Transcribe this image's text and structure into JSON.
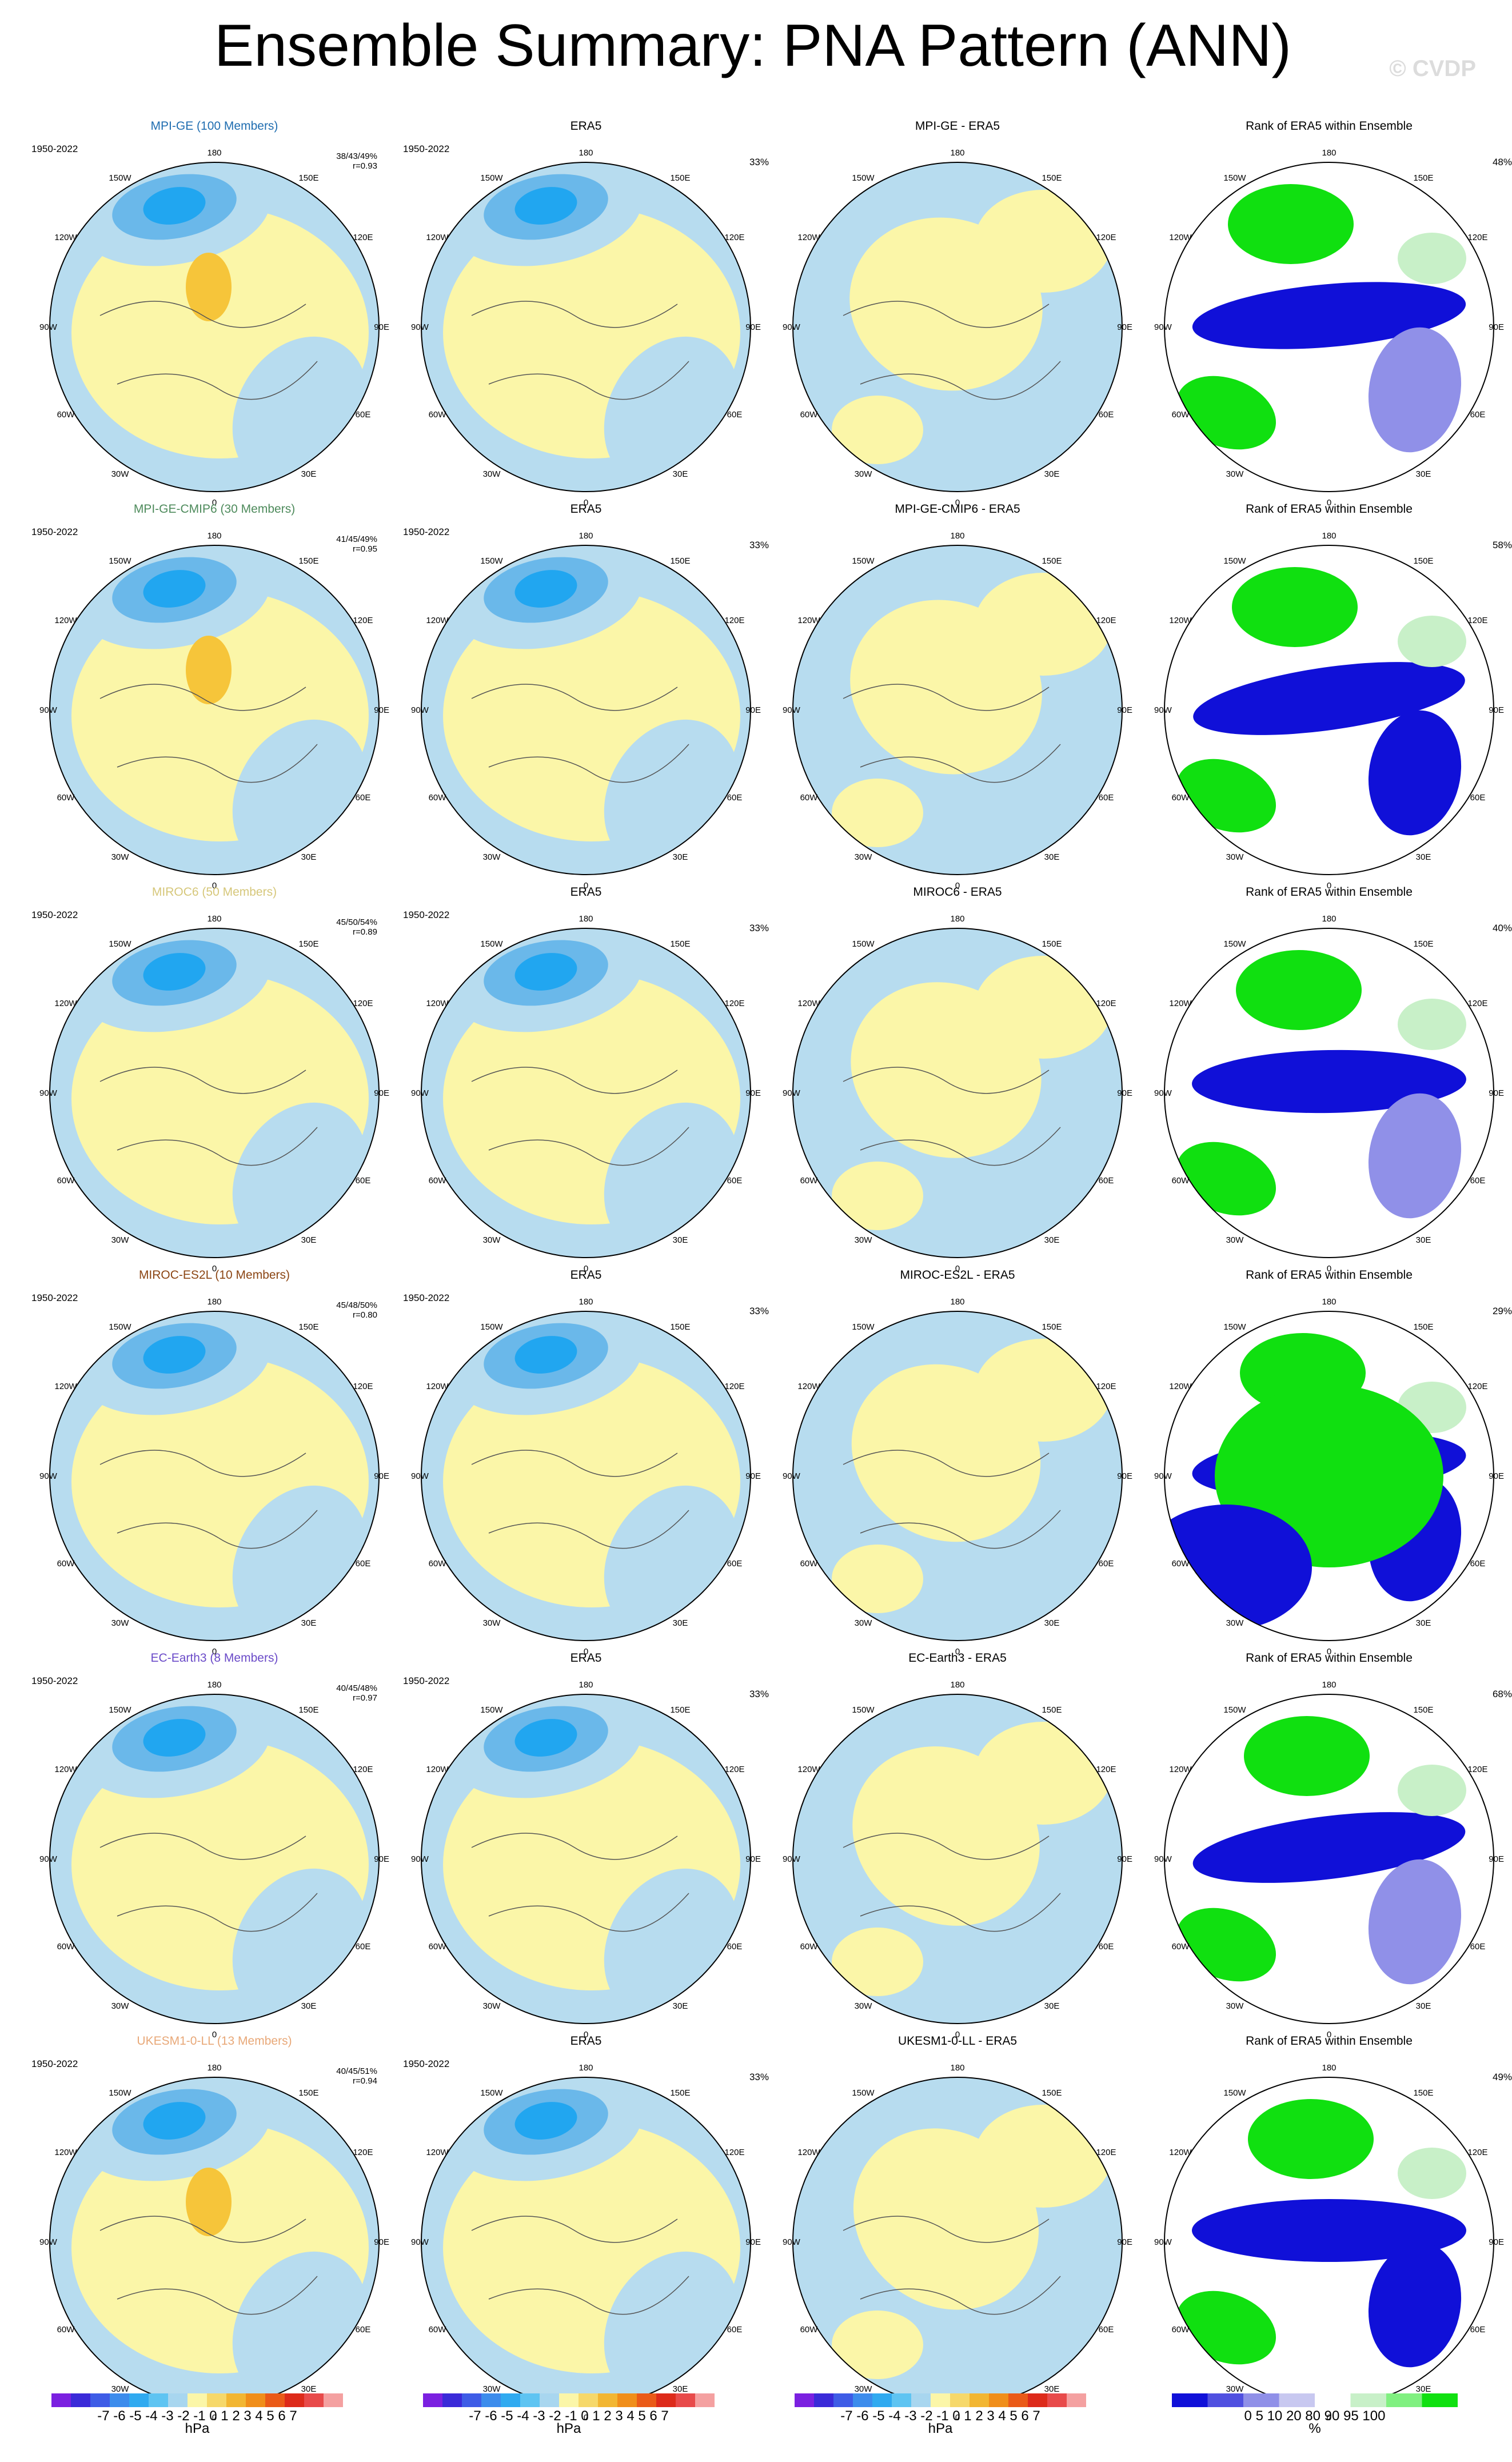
{
  "title": "Ensemble Summary: PNA Pattern (ANN)",
  "watermark": "© CVDP",
  "period": "1950-2022",
  "era5_pct": "33%",
  "obs_title": "ERA5",
  "rank_title": "Rank of ERA5 within Ensemble",
  "lon_labels": {
    "top": "180",
    "bottom": "0",
    "left": "90W",
    "right": "90E",
    "ul1": "150W",
    "ul2": "120W",
    "ur1": "150E",
    "ur2": "120E",
    "ll1": "60W",
    "ll2": "30W",
    "lr1": "60E",
    "lr2": "30E"
  },
  "rows": [
    {
      "model": "MPI-GE (100 Members)",
      "color": "#1f6db0",
      "stats1": "38/43/49%",
      "stats2": "r=0.93",
      "diff": "MPI-GE - ERA5",
      "rank_pct": "48%"
    },
    {
      "model": "MPI-GE-CMIP6 (30 Members)",
      "color": "#4d8a5b",
      "stats1": "41/45/49%",
      "stats2": "r=0.95",
      "diff": "MPI-GE-CMIP6 - ERA5",
      "rank_pct": "58%"
    },
    {
      "model": "MIROC6 (50 Members)",
      "color": "#d6c77a",
      "stats1": "45/50/54%",
      "stats2": "r=0.89",
      "diff": "MIROC6 - ERA5",
      "rank_pct": "40%"
    },
    {
      "model": "MIROC-ES2L (10 Members)",
      "color": "#8b4513",
      "stats1": "45/48/50%",
      "stats2": "r=0.80",
      "diff": "MIROC-ES2L - ERA5",
      "rank_pct": "29%"
    },
    {
      "model": "EC-Earth3 (8 Members)",
      "color": "#6a4ac8",
      "stats1": "40/45/48%",
      "stats2": "r=0.97",
      "diff": "EC-Earth3 - ERA5",
      "rank_pct": "68%"
    },
    {
      "model": "UKESM1-0-LL (13 Members)",
      "color": "#e8a878",
      "stats1": "40/45/51%",
      "stats2": "r=0.94",
      "diff": "UKESM1-0-LL - ERA5",
      "rank_pct": "49%"
    }
  ],
  "colorbars": {
    "hpa_ticks": "-7 -6 -5 -4 -3 -2 -1 0 1 2 3 4 5 6 7",
    "hpa_units": "hPa",
    "hpa_colors": [
      "#7b20e0",
      "#3a2ad8",
      "#3e5ce6",
      "#3c8cec",
      "#30aaf0",
      "#5ec4f2",
      "#a8d6ef",
      "#fbf6a8",
      "#f6d86a",
      "#f2b632",
      "#f08e1a",
      "#ea5a18",
      "#dd2a1a",
      "#e84a4a",
      "#f4a0a0"
    ],
    "rank_ticks": "0 5 10 20 80 90 95 100",
    "rank_units": "%",
    "rank_colors": [
      "#1010d8",
      "#5050e0",
      "#9090e8",
      "#c8c8f0",
      "#ffffff",
      "#c8f0c8",
      "#80f080",
      "#10e010"
    ]
  },
  "map_colors": {
    "neg": "#b7dcef",
    "pos": "#fbf6a8",
    "neg2": "#6ab8ea",
    "neg3": "#21a6f0",
    "pos2": "#f6c53a",
    "rank_hi": "#10e010",
    "rank_lo": "#1010d8"
  }
}
